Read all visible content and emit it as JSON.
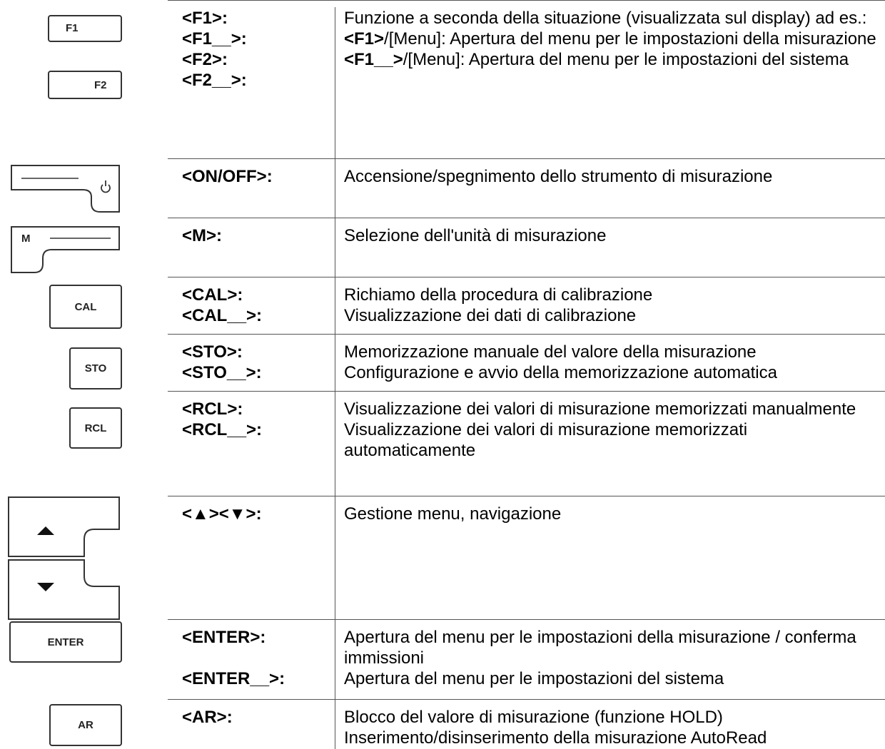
{
  "rows": [
    {
      "icons": [
        "F1",
        "F2"
      ],
      "keys": [
        "<F1>:",
        "<F1__>:",
        "<F2>:",
        "<F2__>:"
      ],
      "description": [
        {
          "text": "Funzione a seconda della situazione (visualizzata sul display) ad es.:"
        },
        {
          "bold": "<F1>",
          "text": "/[Menu]: Apertura del menu per le impostazioni della misurazione"
        },
        {
          "bold": "<F1__>",
          "text": "/[Menu]: Apertura del menu per le impostazioni del sistema"
        }
      ]
    },
    {
      "icons": [],
      "keys": [
        "<ON/OFF>:"
      ],
      "description": [
        {
          "text": "Accensione/spegnimento dello strumento di misurazione"
        }
      ]
    },
    {
      "icons": [
        "M"
      ],
      "keys": [
        "<M>:"
      ],
      "description": [
        {
          "text": "Selezione dell'unità di misurazione"
        }
      ]
    },
    {
      "icons": [
        "CAL"
      ],
      "keys": [
        "<CAL>:",
        "<CAL__>:"
      ],
      "description": [
        {
          "text": "Richiamo della procedura di calibrazione"
        },
        {
          "text": "Visualizzazione dei dati di calibrazione"
        }
      ]
    },
    {
      "icons": [
        "STO"
      ],
      "keys": [
        "<STO>:",
        "<STO__>:"
      ],
      "description": [
        {
          "text": "Memorizzazione manuale del valore della misurazione"
        },
        {
          "text": "Configurazione e avvio della memorizzazione automatica"
        }
      ]
    },
    {
      "icons": [
        "RCL"
      ],
      "keys": [
        "<RCL>:",
        "<RCL__>:"
      ],
      "description": [
        {
          "text": "Visualizzazione dei valori di misurazione memorizzati manualmente"
        },
        {
          "text": "Visualizzazione dei valori di misurazione memorizzati automaticamente"
        }
      ]
    },
    {
      "icons": [],
      "keys": [
        "<▲><▼>:"
      ],
      "description": [
        {
          "text": "Gestione menu, navigazione"
        }
      ]
    },
    {
      "icons": [
        "ENTER"
      ],
      "keys": [
        "<ENTER>:",
        "<ENTER__>:"
      ],
      "description": [
        {
          "text": "Apertura del menu per le impostazioni della misurazione / conferma immissioni"
        },
        {
          "text": "Apertura del menu per le impostazioni del sistema"
        }
      ]
    },
    {
      "icons": [
        "AR"
      ],
      "keys": [
        "<AR>:"
      ],
      "description": [
        {
          "text": "Blocco del valore di misurazione (funzione HOLD)"
        },
        {
          "text": "Inserimento/disinserimento della misurazione AutoRead"
        }
      ]
    }
  ]
}
